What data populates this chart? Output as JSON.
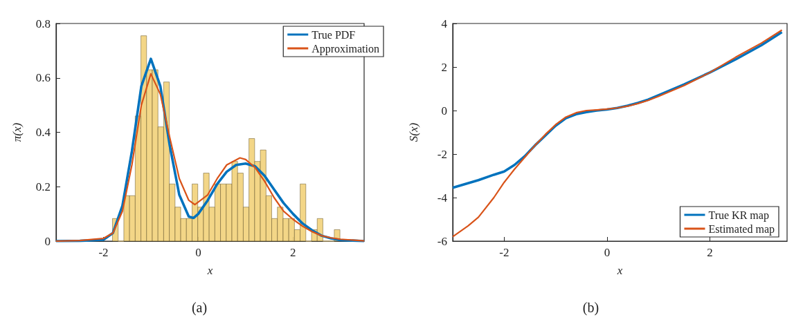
{
  "chart_data": [
    {
      "type": "histogram",
      "xlabel": "x",
      "ylabel": "π(x)",
      "annotations": [
        "(a)"
      ],
      "xlim": [
        -3,
        3.5
      ],
      "ylim": [
        0,
        0.8
      ],
      "xticks": [
        -2,
        0,
        2
      ],
      "yticks": [
        0,
        0.2,
        0.4,
        0.6,
        0.8
      ],
      "legend": "top right",
      "grid": false,
      "color": "#f2d27a",
      "bins": [
        -1.81,
        -1.69,
        -1.57,
        -1.45,
        -1.33,
        -1.21,
        -1.09,
        -0.97,
        -0.85,
        -0.73,
        -0.61,
        -0.49,
        -0.37,
        -0.25,
        -0.13,
        -0.01,
        0.11,
        0.23,
        0.35,
        0.47,
        0.59,
        0.71,
        0.83,
        0.95,
        1.07,
        1.19,
        1.31,
        1.43,
        1.55,
        1.67,
        1.79,
        1.91,
        2.03,
        2.15,
        2.27,
        2.39,
        2.51,
        2.63,
        2.75,
        2.87,
        2.99
      ],
      "values": [
        0.083,
        0,
        0.167,
        0.167,
        0.46,
        0.755,
        0.63,
        0.63,
        0.42,
        0.585,
        0.21,
        0.125,
        0.083,
        0.083,
        0.21,
        0.125,
        0.25,
        0.125,
        0.21,
        0.21,
        0.21,
        0.293,
        0.25,
        0.125,
        0.377,
        0.293,
        0.335,
        0.167,
        0.083,
        0.125,
        0.083,
        0.083,
        0.042,
        0.21,
        0,
        0.042,
        0.083,
        0,
        0,
        0.042
      ],
      "series": [
        {
          "name": "True PDF",
          "type": "line",
          "color": "#0072bd",
          "x": [
            -3,
            -2.5,
            -2,
            -1.8,
            -1.6,
            -1.4,
            -1.2,
            -1,
            -0.8,
            -0.6,
            -0.4,
            -0.2,
            -0.1,
            0,
            0.2,
            0.4,
            0.6,
            0.8,
            1,
            1.2,
            1.4,
            1.6,
            1.8,
            2,
            2.2,
            2.4,
            2.6,
            2.8,
            3,
            3.5
          ],
          "values": [
            0,
            0.001,
            0.005,
            0.03,
            0.13,
            0.33,
            0.57,
            0.67,
            0.57,
            0.35,
            0.17,
            0.09,
            0.085,
            0.1,
            0.15,
            0.21,
            0.255,
            0.28,
            0.285,
            0.275,
            0.24,
            0.19,
            0.14,
            0.1,
            0.065,
            0.04,
            0.02,
            0.01,
            0.004,
            0
          ]
        },
        {
          "name": "Approximation",
          "type": "line",
          "color": "#d95319",
          "x": [
            -3,
            -2.5,
            -2,
            -1.8,
            -1.6,
            -1.4,
            -1.2,
            -1,
            -0.8,
            -0.6,
            -0.4,
            -0.2,
            -0.07,
            0.2,
            0.4,
            0.6,
            0.88,
            1,
            1.2,
            1.4,
            1.6,
            1.8,
            2,
            2.2,
            2.4,
            2.6,
            2.8,
            3,
            3.5
          ],
          "values": [
            0,
            0.002,
            0.01,
            0.03,
            0.11,
            0.28,
            0.5,
            0.615,
            0.54,
            0.38,
            0.23,
            0.15,
            0.134,
            0.17,
            0.23,
            0.28,
            0.306,
            0.3,
            0.27,
            0.22,
            0.16,
            0.11,
            0.08,
            0.055,
            0.035,
            0.02,
            0.012,
            0.007,
            0.001
          ]
        }
      ]
    },
    {
      "type": "line",
      "xlabel": "x",
      "ylabel": "S(x)",
      "annotations": [
        "(b)"
      ],
      "xlim": [
        -3,
        3.5
      ],
      "ylim": [
        -6,
        4
      ],
      "xticks": [
        -2,
        0,
        2
      ],
      "yticks": [
        -6,
        -4,
        -2,
        0,
        2,
        4
      ],
      "legend": "bottom right",
      "grid": false,
      "series": [
        {
          "name": "True KR map",
          "color": "#0072bd",
          "x": [
            -3,
            -2.5,
            -2.2,
            -2,
            -1.8,
            -1.6,
            -1.4,
            -1.2,
            -1,
            -0.8,
            -0.6,
            -0.4,
            -0.2,
            0,
            0.2,
            0.4,
            0.6,
            0.8,
            1,
            1.5,
            2,
            2.5,
            3,
            3.4
          ],
          "values": [
            -3.55,
            -3.2,
            -2.95,
            -2.8,
            -2.5,
            -2.1,
            -1.6,
            -1.15,
            -0.7,
            -0.35,
            -0.17,
            -0.07,
            0,
            0.05,
            0.12,
            0.22,
            0.35,
            0.5,
            0.7,
            1.2,
            1.75,
            2.35,
            3,
            3.6
          ]
        },
        {
          "name": "Estimated map",
          "color": "#d95319",
          "x": [
            -3,
            -2.7,
            -2.5,
            -2.2,
            -2,
            -1.8,
            -1.6,
            -1.4,
            -1.2,
            -1,
            -0.8,
            -0.6,
            -0.4,
            -0.2,
            0,
            0.2,
            0.4,
            0.6,
            0.8,
            1,
            1.5,
            2,
            2.5,
            3,
            3.4
          ],
          "values": [
            -5.8,
            -5.3,
            -4.9,
            -4,
            -3.3,
            -2.7,
            -2.15,
            -1.6,
            -1.1,
            -0.65,
            -0.3,
            -0.1,
            0,
            0.03,
            0.07,
            0.12,
            0.2,
            0.32,
            0.47,
            0.65,
            1.15,
            1.75,
            2.45,
            3.1,
            3.7
          ]
        }
      ]
    }
  ]
}
